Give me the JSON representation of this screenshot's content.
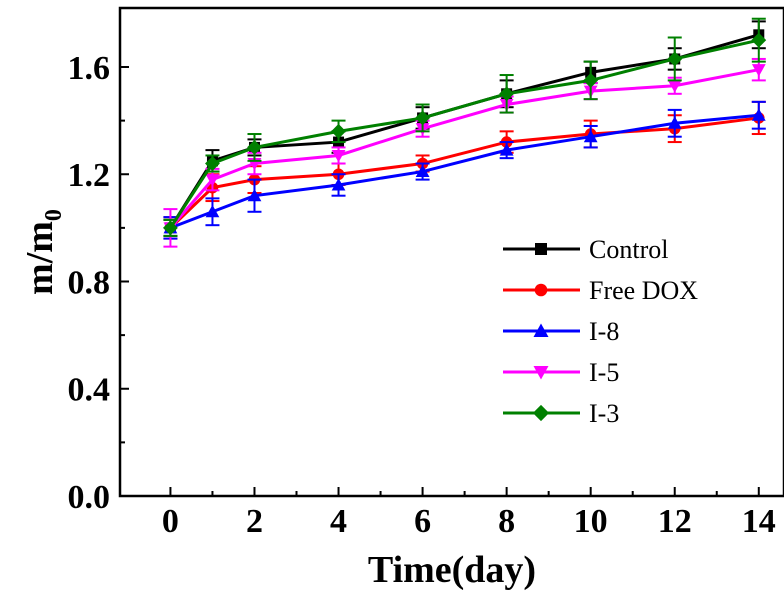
{
  "chart_data": {
    "type": "line",
    "title": "",
    "xlabel": "Time(day)",
    "ylabel_main": "m/m",
    "ylabel_sub": "0",
    "x": [
      0,
      1,
      2,
      4,
      6,
      8,
      10,
      12,
      14
    ],
    "x_ticks": [
      0,
      2,
      4,
      6,
      8,
      10,
      12,
      14
    ],
    "y_ticks": [
      0.0,
      0.4,
      0.8,
      1.2,
      1.6
    ],
    "y_tick_labels": [
      "0.0",
      "0.4",
      "0.8",
      "1.2",
      "1.6"
    ],
    "xlim": [
      -1.2,
      14.6
    ],
    "ylim": [
      0.0,
      1.82
    ],
    "grid": false,
    "legend_position": "right",
    "series": [
      {
        "name": "Control",
        "color": "#000000",
        "marker": "square",
        "values": [
          1.0,
          1.25,
          1.3,
          1.32,
          1.41,
          1.5,
          1.58,
          1.63,
          1.72
        ],
        "errors": [
          0.03,
          0.04,
          0.03,
          0.04,
          0.04,
          0.05,
          0.04,
          0.04,
          0.05
        ]
      },
      {
        "name": "Free DOX",
        "color": "#ff0000",
        "marker": "circle",
        "values": [
          1.0,
          1.15,
          1.18,
          1.2,
          1.24,
          1.32,
          1.35,
          1.37,
          1.41
        ],
        "errors": [
          0.04,
          0.05,
          0.05,
          0.04,
          0.03,
          0.04,
          0.05,
          0.05,
          0.06
        ]
      },
      {
        "name": "I-8",
        "color": "#0000ff",
        "marker": "triangle-up",
        "values": [
          1.0,
          1.06,
          1.12,
          1.16,
          1.21,
          1.29,
          1.34,
          1.39,
          1.42
        ],
        "errors": [
          0.04,
          0.05,
          0.06,
          0.04,
          0.03,
          0.03,
          0.04,
          0.05,
          0.05
        ]
      },
      {
        "name": "I-5",
        "color": "#ff00ff",
        "marker": "triangle-down",
        "values": [
          1.0,
          1.18,
          1.24,
          1.27,
          1.37,
          1.46,
          1.51,
          1.53,
          1.59
        ],
        "errors": [
          0.07,
          0.04,
          0.04,
          0.03,
          0.03,
          0.03,
          0.03,
          0.03,
          0.04
        ]
      },
      {
        "name": "I-3",
        "color": "#008000",
        "marker": "diamond",
        "values": [
          1.0,
          1.24,
          1.3,
          1.36,
          1.41,
          1.5,
          1.55,
          1.63,
          1.7
        ],
        "errors": [
          0.03,
          0.03,
          0.05,
          0.04,
          0.05,
          0.07,
          0.07,
          0.08,
          0.08
        ]
      }
    ]
  }
}
